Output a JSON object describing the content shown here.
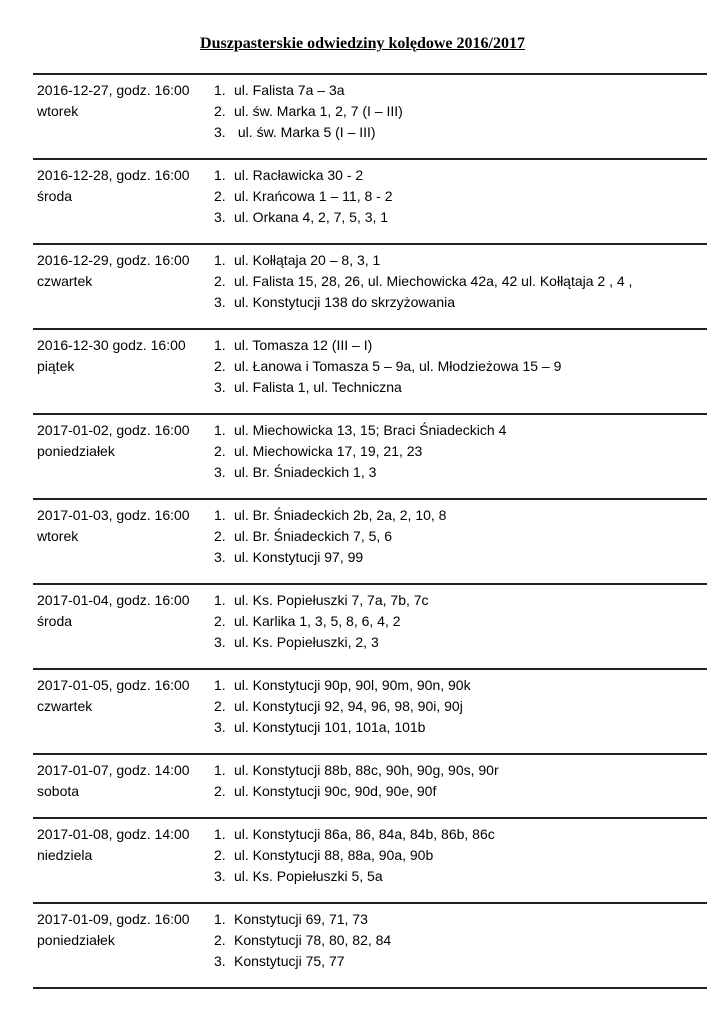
{
  "title": "Duszpasterskie odwiedziny kolędowe 2016/2017",
  "visits": [
    {
      "date": "2016-12-27, godz. 16:00",
      "day": "wtorek",
      "items": [
        "ul. Falista 7a – 3a",
        "ul. św. Marka 1, 2, 7 (I – III)",
        " ul. św. Marka 5 (I – III)"
      ]
    },
    {
      "date": "2016-12-28, godz. 16:00",
      "day": "środa",
      "items": [
        "ul. Racławicka 30 - 2",
        "ul. Krańcowa 1 – 11, 8 - 2",
        "ul. Orkana 4, 2, 7, 5, 3, 1"
      ]
    },
    {
      "date": "2016-12-29, godz. 16:00",
      "day": "czwartek",
      "items": [
        "ul. Kołłątaja 20 – 8, 3, 1",
        "ul. Falista 15, 28, 26, ul. Miechowicka 42a, 42 ul. Kołłątaja 2 , 4 ,",
        "ul. Konstytucji 138 do skrzyżowania"
      ]
    },
    {
      "date": "2016-12-30 godz. 16:00",
      "day": "piątek",
      "items": [
        "ul. Tomasza 12 (III – I)",
        "ul. Łanowa i Tomasza 5 – 9a, ul. Młodzieżowa 15 – 9",
        "ul. Falista 1, ul. Techniczna"
      ]
    },
    {
      "date": "2017-01-02, godz. 16:00",
      "day": "poniedziałek",
      "items": [
        "ul. Miechowicka 13, 15; Braci Śniadeckich 4",
        "ul. Miechowicka 17, 19, 21, 23",
        "ul. Br. Śniadeckich 1, 3"
      ]
    },
    {
      "date": "2017-01-03, godz. 16:00",
      "day": "wtorek",
      "items": [
        "ul. Br. Śniadeckich 2b, 2a, 2, 10, 8",
        "ul. Br. Śniadeckich 7, 5, 6",
        "ul. Konstytucji 97, 99"
      ]
    },
    {
      "date": "2017-01-04, godz. 16:00",
      "day": "środa",
      "items": [
        "ul. Ks. Popiełuszki 7, 7a, 7b, 7c",
        "ul. Karlika 1, 3, 5, 8, 6, 4, 2",
        "ul. Ks. Popiełuszki, 2, 3"
      ]
    },
    {
      "date": "2017-01-05, godz. 16:00",
      "day": "czwartek",
      "items": [
        "ul. Konstytucji 90p, 90l, 90m, 90n, 90k",
        "ul. Konstytucji 92, 94, 96, 98, 90i, 90j",
        "ul. Konstytucji 101, 101a, 101b"
      ]
    },
    {
      "date": "2017-01-07, godz. 14:00",
      "day": "sobota",
      "items": [
        "ul. Konstytucji 88b, 88c, 90h, 90g, 90s, 90r",
        "ul. Konstytucji 90c, 90d, 90e, 90f"
      ]
    },
    {
      "date": "2017-01-08, godz. 14:00",
      "day": "niedziela",
      "items": [
        "ul. Konstytucji 86a, 86, 84a, 84b, 86b, 86c",
        "ul. Konstytucji 88, 88a, 90a, 90b",
        "ul. Ks. Popiełuszki 5, 5a"
      ]
    },
    {
      "date": "2017-01-09, godz. 16:00",
      "day": "poniedziałek",
      "items": [
        "Konstytucji 69, 71, 73",
        "Konstytucji 78, 80, 82, 84",
        "Konstytucji 75, 77"
      ]
    }
  ]
}
